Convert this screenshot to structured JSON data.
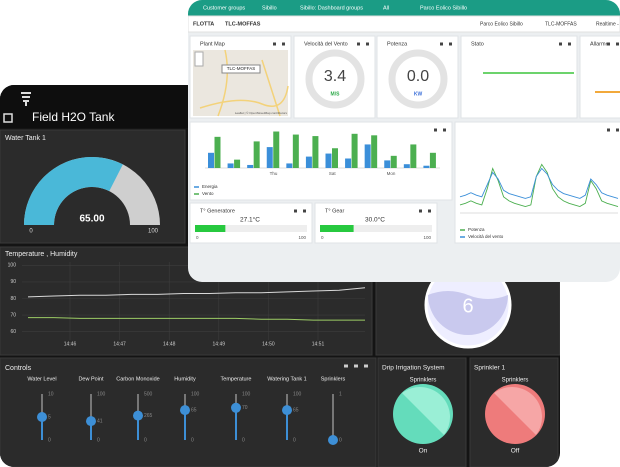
{
  "back": {
    "title": "Field H2O Tank",
    "tank": {
      "title": "Water Tank 1",
      "value": 65,
      "value_label": "65.00",
      "min": 0,
      "max": 100,
      "color": "#4ab8d8"
    },
    "env": {
      "title": "Temperature , Humidity",
      "ylim": [
        55,
        102
      ],
      "yticks": [
        60,
        70,
        80,
        90,
        100
      ],
      "xticks": [
        "14:46",
        "14:47",
        "14:48",
        "14:49",
        "14:50",
        "14:51"
      ],
      "series": [
        {
          "color": "#d8d8d8",
          "values": [
            81,
            81.5,
            82,
            82,
            82.5,
            82.5,
            83,
            83,
            83.5,
            83.5,
            84,
            84.5,
            85,
            86.5
          ]
        },
        {
          "color": "#9ccc65",
          "values": [
            68.5,
            68.5,
            68,
            68,
            68,
            68,
            68,
            68,
            68,
            67.5,
            67.5,
            67,
            67,
            67
          ]
        }
      ]
    },
    "level": {
      "value": "6"
    },
    "controls": {
      "title": "Controls",
      "sliders": [
        {
          "name": "Water Level",
          "max": 10,
          "min": 0,
          "value": 5
        },
        {
          "name": "Dew Point",
          "max": 100,
          "min": 0,
          "value": 41
        },
        {
          "name": "Carbon Monoxide",
          "max": 500,
          "min": 0,
          "value": 265
        },
        {
          "name": "Humidity",
          "max": 100,
          "min": 0,
          "value": 65
        },
        {
          "name": "Temperature",
          "max": 100,
          "min": 0,
          "value": 70
        },
        {
          "name": "Watering Tank 1",
          "max": 100,
          "min": 0,
          "value": 65
        },
        {
          "name": "Sprinklers",
          "max": 1,
          "min": 0,
          "value": 0
        }
      ]
    },
    "drip": {
      "title": "Drip Irrigation System",
      "label": "Sprinklers",
      "state": "On"
    },
    "sprinkler": {
      "title": "Sprinkler 1",
      "label": "Sprinklers",
      "state": "Off"
    }
  },
  "front": {
    "breadcrumb": [
      "Customer groups",
      "Sibillo",
      "Sibillo: Dashboard groups",
      "All",
      "Parco Eolico Sibillo"
    ],
    "toolbar": {
      "left": [
        "FLOTTA",
        "TLC-MOFFAS"
      ],
      "right": [
        "Parco Eolico Sibillo",
        "TLC-MOFFAS",
        "Realtime - ul"
      ]
    },
    "map": {
      "title": "Plant Map",
      "marker": "TLC-MOFFAS",
      "attribution": "Leaflet | © OpenStreetMap contributors"
    },
    "wind": {
      "title": "Velocità del Vento",
      "value": "3.4",
      "unit": "M/S"
    },
    "power": {
      "title": "Potenza",
      "value": "0.0",
      "unit": "KW"
    },
    "status": {
      "title": "Stato"
    },
    "alarm": {
      "title": "Allarme"
    },
    "energy_chart": {
      "categories": [
        null,
        null,
        null,
        "Thu",
        null,
        null,
        "Sat",
        null,
        null,
        "Mon",
        null,
        null
      ],
      "ylim": [
        0,
        100
      ],
      "series": [
        {
          "name": "Energia",
          "color": "#3b8fd9",
          "values": [
            40,
            12,
            8,
            55,
            12,
            30,
            38,
            25,
            62,
            20,
            10,
            6
          ]
        },
        {
          "name": "Vento",
          "color": "#4caf50",
          "values": [
            82,
            22,
            70,
            96,
            88,
            84,
            52,
            90,
            86,
            32,
            62,
            40
          ]
        }
      ]
    },
    "power_chart": {
      "ylim": [
        0,
        100
      ],
      "series": [
        {
          "name": "Potenza",
          "color": "#4caf50",
          "values": [
            10,
            12,
            15,
            12,
            10,
            30,
            55,
            40,
            20,
            15,
            12,
            10,
            8,
            10,
            45,
            60,
            50,
            30,
            20,
            15,
            12,
            10,
            8,
            12,
            40,
            30,
            15,
            12,
            10,
            8
          ]
        },
        {
          "name": "Velocità del vento",
          "color": "#3b8fd9",
          "values": [
            20,
            22,
            25,
            22,
            20,
            35,
            50,
            42,
            28,
            24,
            22,
            20,
            18,
            20,
            45,
            55,
            48,
            35,
            28,
            24,
            22,
            20,
            18,
            22,
            42,
            35,
            25,
            22,
            20,
            18
          ]
        }
      ]
    },
    "temps": [
      {
        "title": "T° Generatore",
        "value": 27.1,
        "value_label": "27.1°C",
        "min": 0,
        "max": 100
      },
      {
        "title": "T° Gear",
        "value": 30,
        "value_label": "30.0°C",
        "min": 0,
        "max": 100
      }
    ]
  }
}
